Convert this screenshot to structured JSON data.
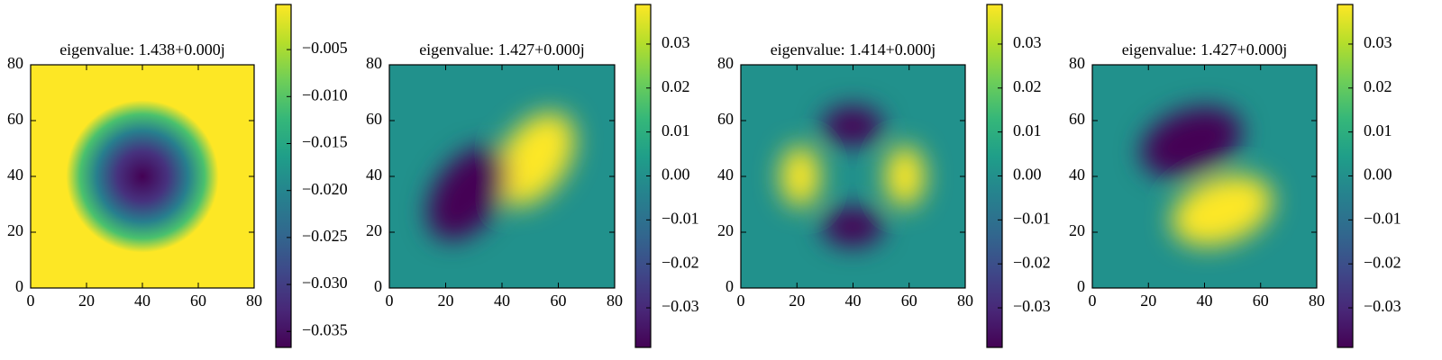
{
  "chart_data": [
    {
      "type": "heatmap",
      "title": "eigenvalue: 1.438+0.000j",
      "colormap": "viridis",
      "xlim": [
        0,
        80
      ],
      "ylim": [
        0,
        80
      ],
      "xticks": [
        0,
        20,
        40,
        60,
        80
      ],
      "yticks": [
        0,
        20,
        40,
        60,
        80
      ],
      "colorbar": {
        "clim": [
          -0.0367,
          -0.0002
        ],
        "ticks": [
          {
            "value": -0.005,
            "label": "−0.005"
          },
          {
            "value": -0.01,
            "label": "−0.010"
          },
          {
            "value": -0.015,
            "label": "−0.015"
          },
          {
            "value": -0.02,
            "label": "−0.020"
          },
          {
            "value": -0.025,
            "label": "−0.025"
          },
          {
            "value": -0.03,
            "label": "−0.030"
          },
          {
            "value": -0.035,
            "label": "−0.035"
          }
        ]
      }
    },
    {
      "type": "heatmap",
      "title": "eigenvalue: 1.427+0.000j",
      "colormap": "viridis",
      "xlim": [
        0,
        80
      ],
      "ylim": [
        0,
        80
      ],
      "xticks": [
        0,
        20,
        40,
        60,
        80
      ],
      "yticks": [
        0,
        20,
        40,
        60,
        80
      ],
      "colorbar": {
        "clim": [
          -0.039,
          0.039
        ],
        "ticks": [
          0.03,
          0.02,
          0.01,
          {
            "value": 0,
            "label": "0.00"
          },
          {
            "value": -0.01,
            "label": "−0.01"
          },
          {
            "value": -0.02,
            "label": "−0.02"
          },
          {
            "value": -0.03,
            "label": "−0.03"
          }
        ]
      }
    },
    {
      "type": "heatmap",
      "title": "eigenvalue: 1.414+0.000j",
      "colormap": "viridis",
      "xlim": [
        0,
        80
      ],
      "ylim": [
        0,
        80
      ],
      "xticks": [
        0,
        20,
        40,
        60,
        80
      ],
      "yticks": [
        0,
        20,
        40,
        60,
        80
      ],
      "colorbar": {
        "clim": [
          -0.039,
          0.039
        ],
        "ticks": [
          0.03,
          0.02,
          0.01,
          {
            "value": 0,
            "label": "0.00"
          },
          {
            "value": -0.01,
            "label": "−0.01"
          },
          {
            "value": -0.02,
            "label": "−0.02"
          },
          {
            "value": -0.03,
            "label": "−0.03"
          }
        ]
      }
    },
    {
      "type": "heatmap",
      "title": "eigenvalue: 1.427+0.000j",
      "colormap": "viridis",
      "xlim": [
        0,
        80
      ],
      "ylim": [
        0,
        80
      ],
      "xticks": [
        0,
        20,
        40,
        60,
        80
      ],
      "yticks": [
        0,
        20,
        40,
        60,
        80
      ],
      "colorbar": {
        "clim": [
          -0.039,
          0.039
        ],
        "ticks": [
          0.03,
          0.02,
          0.01,
          {
            "value": 0,
            "label": "0.00"
          },
          {
            "value": -0.01,
            "label": "−0.01"
          },
          {
            "value": -0.02,
            "label": "−0.02"
          },
          {
            "value": -0.03,
            "label": "−0.03"
          }
        ]
      }
    }
  ]
}
